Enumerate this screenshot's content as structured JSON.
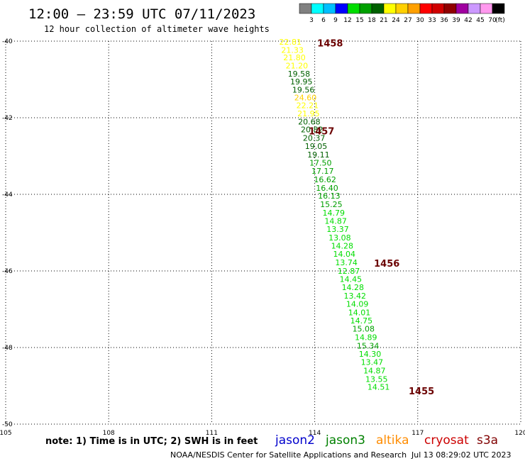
{
  "header": {
    "title": "12:00 — 23:59 UTC 07/11/2023",
    "subtitle": "12 hour collection of altimeter wave heights"
  },
  "color_scale": {
    "labels": [
      "3",
      "6",
      "9",
      "12",
      "15",
      "18",
      "21",
      "24",
      "27",
      "30",
      "33",
      "36",
      "39",
      "42",
      "45",
      "70"
    ],
    "unit": "(ft)",
    "colors": [
      "#808080",
      "#00ffff",
      "#00bfff",
      "#0000ff",
      "#00dd00",
      "#00a000",
      "#006000",
      "#ffff00",
      "#ffd000",
      "#ffa000",
      "#ff0000",
      "#d00000",
      "#900000",
      "#a000a0",
      "#cc99ff",
      "#ff99ee",
      "#000000"
    ]
  },
  "chart_data": {
    "type": "scatter",
    "xlim": [
      105,
      120
    ],
    "ylim": [
      -50,
      -40
    ],
    "x_ticks": [
      "105",
      "108",
      "111",
      "114",
      "117",
      "120"
    ],
    "y_ticks": [
      "-40",
      "-42",
      "-44",
      "-46",
      "-48",
      "-50"
    ],
    "grid": true,
    "points": [
      {
        "x": 113.29,
        "y": -40.02,
        "v": "22.81",
        "c": "#ffff00"
      },
      {
        "x": 113.35,
        "y": -40.23,
        "v": "21.33",
        "c": "#ffff00"
      },
      {
        "x": 113.41,
        "y": -40.43,
        "v": "21.80",
        "c": "#ffff00"
      },
      {
        "x": 113.48,
        "y": -40.64,
        "v": "21.20",
        "c": "#ffff00"
      },
      {
        "x": 113.54,
        "y": -40.85,
        "v": "19.58",
        "c": "#006000"
      },
      {
        "x": 113.61,
        "y": -41.06,
        "v": "19.95",
        "c": "#006000"
      },
      {
        "x": 113.67,
        "y": -41.27,
        "v": "19.56",
        "c": "#006000"
      },
      {
        "x": 113.73,
        "y": -41.47,
        "v": "24.60",
        "c": "#ffd000"
      },
      {
        "x": 113.79,
        "y": -41.68,
        "v": "22.21",
        "c": "#ffff00"
      },
      {
        "x": 113.82,
        "y": -41.89,
        "v": "21.95",
        "c": "#ffff00"
      },
      {
        "x": 113.84,
        "y": -42.1,
        "v": "20.68",
        "c": "#006000"
      },
      {
        "x": 113.92,
        "y": -42.31,
        "v": "20.82",
        "c": "#006000"
      },
      {
        "x": 113.98,
        "y": -42.53,
        "v": "20.37",
        "c": "#006000"
      },
      {
        "x": 114.04,
        "y": -42.74,
        "v": "19.05",
        "c": "#006000"
      },
      {
        "x": 114.11,
        "y": -42.96,
        "v": "19.11",
        "c": "#006000"
      },
      {
        "x": 114.17,
        "y": -43.18,
        "v": "17.50",
        "c": "#00a000"
      },
      {
        "x": 114.23,
        "y": -43.39,
        "v": "17.17",
        "c": "#00a000"
      },
      {
        "x": 114.3,
        "y": -43.61,
        "v": "16.62",
        "c": "#00a000"
      },
      {
        "x": 114.36,
        "y": -43.83,
        "v": "16.40",
        "c": "#00a000"
      },
      {
        "x": 114.42,
        "y": -44.04,
        "v": "16.13",
        "c": "#00a000"
      },
      {
        "x": 114.48,
        "y": -44.26,
        "v": "15.25",
        "c": "#00a000"
      },
      {
        "x": 114.55,
        "y": -44.48,
        "v": "14.79",
        "c": "#00dd00"
      },
      {
        "x": 114.61,
        "y": -44.69,
        "v": "14.87",
        "c": "#00dd00"
      },
      {
        "x": 114.67,
        "y": -44.91,
        "v": "13.37",
        "c": "#00dd00"
      },
      {
        "x": 114.73,
        "y": -45.13,
        "v": "13.08",
        "c": "#00dd00"
      },
      {
        "x": 114.8,
        "y": -45.34,
        "v": "14.28",
        "c": "#00dd00"
      },
      {
        "x": 114.86,
        "y": -45.56,
        "v": "14.04",
        "c": "#00dd00"
      },
      {
        "x": 114.92,
        "y": -45.78,
        "v": "13.74",
        "c": "#00dd00"
      },
      {
        "x": 114.99,
        "y": -46.0,
        "v": "12.87",
        "c": "#00dd00"
      },
      {
        "x": 115.05,
        "y": -46.21,
        "v": "14.45",
        "c": "#00dd00"
      },
      {
        "x": 115.11,
        "y": -46.43,
        "v": "14.28",
        "c": "#00dd00"
      },
      {
        "x": 115.17,
        "y": -46.65,
        "v": "13.42",
        "c": "#00dd00"
      },
      {
        "x": 115.24,
        "y": -46.86,
        "v": "14.09",
        "c": "#00dd00"
      },
      {
        "x": 115.3,
        "y": -47.08,
        "v": "14.01",
        "c": "#00dd00"
      },
      {
        "x": 115.36,
        "y": -47.3,
        "v": "14.75",
        "c": "#00dd00"
      },
      {
        "x": 115.42,
        "y": -47.51,
        "v": "15.08",
        "c": "#00a000"
      },
      {
        "x": 115.49,
        "y": -47.73,
        "v": "14.89",
        "c": "#00dd00"
      },
      {
        "x": 115.55,
        "y": -47.95,
        "v": "15.34",
        "c": "#00a000"
      },
      {
        "x": 115.61,
        "y": -48.17,
        "v": "14.30",
        "c": "#00dd00"
      },
      {
        "x": 115.67,
        "y": -48.38,
        "v": "13.47",
        "c": "#00dd00"
      },
      {
        "x": 115.74,
        "y": -48.6,
        "v": "14.87",
        "c": "#00dd00"
      },
      {
        "x": 115.8,
        "y": -48.82,
        "v": "13.55",
        "c": "#00dd00"
      },
      {
        "x": 115.86,
        "y": -49.03,
        "v": "14.51",
        "c": "#00dd00"
      }
    ],
    "times": [
      {
        "x": 114.45,
        "y": -40.05,
        "t": "1458"
      },
      {
        "x": 114.2,
        "y": -42.34,
        "t": "1457"
      },
      {
        "x": 116.1,
        "y": -45.8,
        "t": "1456"
      },
      {
        "x": 117.11,
        "y": -49.13,
        "t": "1455"
      }
    ]
  },
  "note": "note: 1) Time is in UTC; 2) SWH is in feet",
  "missions": [
    {
      "name": "jason2",
      "color": "#0000cc"
    },
    {
      "name": "jason3",
      "color": "#008000"
    },
    {
      "name": "altika",
      "color": "#ff8c00"
    },
    {
      "name": "cryosat",
      "color": "#cc0000"
    },
    {
      "name": "s3a",
      "color": "#800000"
    }
  ],
  "footer": {
    "org": "NOAA/NESDIS Center for Satellite Applications and Research",
    "timestamp": "Jul 13 08:29:02 UTC 2023"
  }
}
